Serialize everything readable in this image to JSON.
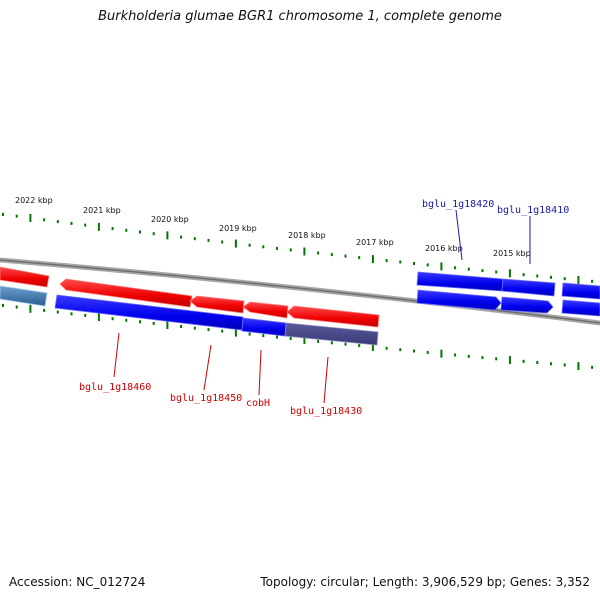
{
  "title": "Burkholderia glumae BGR1 chromosome 1, complete genome",
  "footer": {
    "accession": "Accession: NC_012724",
    "summary": "Topology: circular; Length: 3,906,529 bp; Genes: 3,352"
  },
  "colors": {
    "forward_gene": "#0000ee",
    "reverse_gene": "#ee0000",
    "tick": "#007700",
    "backbone": "#888888",
    "forward_label": "#1a1aa6",
    "reverse_label": "#cc0000"
  },
  "ticks": {
    "labels": [
      "2022 kbp",
      "2021 kbp",
      "2020 kbp",
      "2019 kbp",
      "2018 kbp",
      "2017 kbp",
      "2016 kbp",
      "2015 kbp"
    ]
  },
  "gene_labels": {
    "forward": [
      "bglu_1g18420",
      "bglu_1g18410"
    ],
    "reverse": [
      "bglu_1g18460",
      "bglu_1g18450",
      "cobH",
      "bglu_1g18430"
    ]
  }
}
